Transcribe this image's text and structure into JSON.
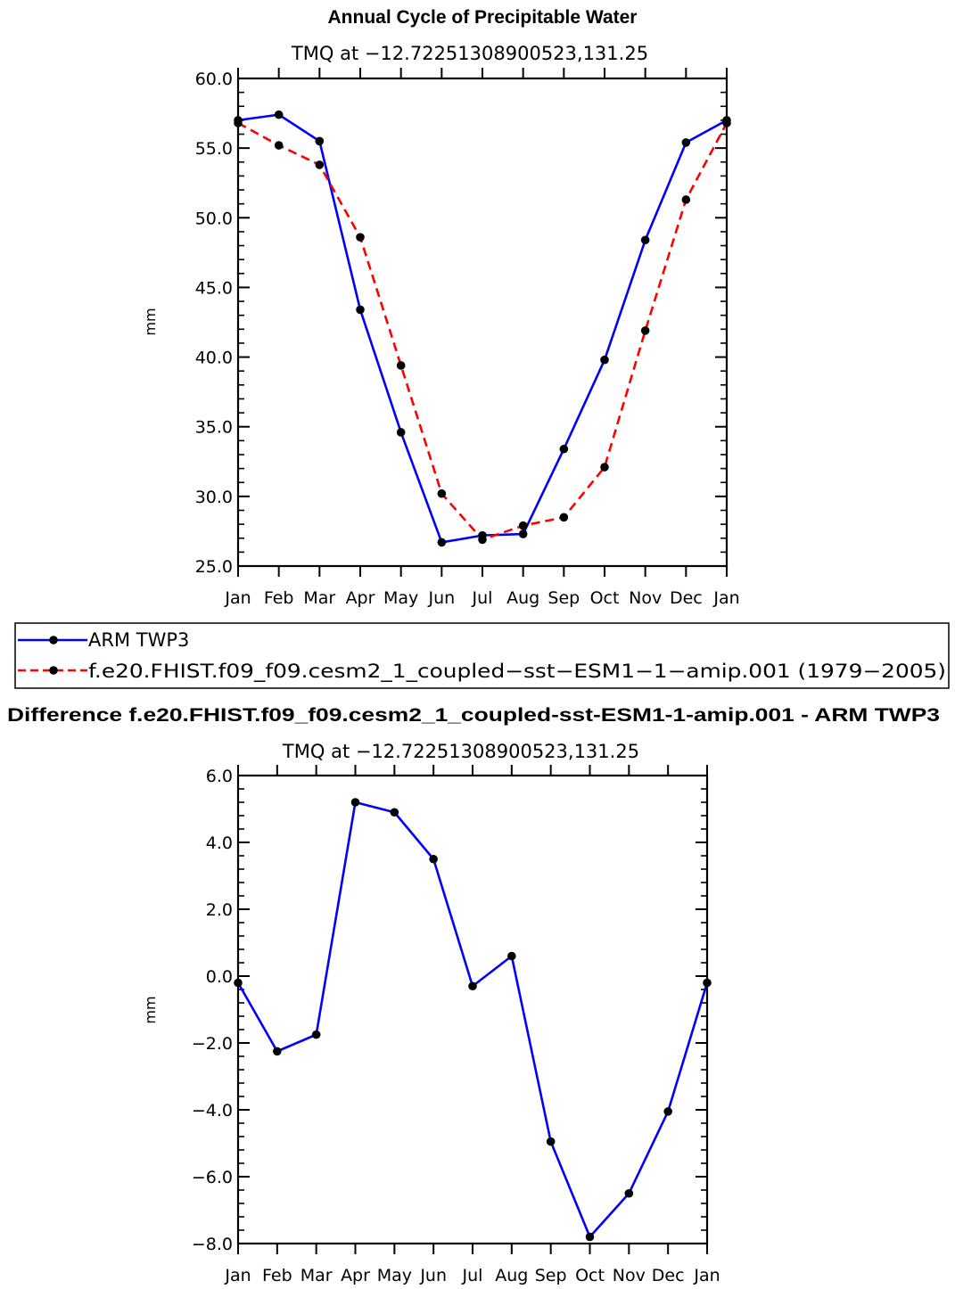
{
  "chart_data": [
    {
      "type": "line",
      "title": "Annual Cycle of Precipitable Water",
      "subtitle": "TMQ at −12.72251308900523,131.25",
      "xlabel": "",
      "ylabel": "mm",
      "categories": [
        "Jan",
        "Feb",
        "Mar",
        "Apr",
        "May",
        "Jun",
        "Jul",
        "Aug",
        "Sep",
        "Oct",
        "Nov",
        "Dec",
        "Jan"
      ],
      "ylim": [
        25.0,
        60.0
      ],
      "yticks": [
        25.0,
        30.0,
        35.0,
        40.0,
        45.0,
        50.0,
        55.0,
        60.0
      ],
      "ytick_labels": [
        "25.0",
        "30.0",
        "35.0",
        "40.0",
        "45.0",
        "50.0",
        "55.0",
        "60.0"
      ],
      "series": [
        {
          "name": "ARM TWP3",
          "color": "#0000ff",
          "style": "solid",
          "marker": "circle",
          "values": [
            57.0,
            57.4,
            55.5,
            43.4,
            34.6,
            26.7,
            27.2,
            27.3,
            33.4,
            39.8,
            48.4,
            55.4,
            57.0
          ]
        },
        {
          "name": "f.e20.FHIST.f09_f09.cesm2_1_coupled−sst−ESM1−1−amip.001 (1979−2005)",
          "color": "#ff0000",
          "style": "dashed",
          "marker": "circle",
          "values": [
            56.8,
            55.2,
            53.8,
            48.6,
            39.4,
            30.2,
            26.9,
            27.9,
            28.5,
            32.1,
            41.9,
            51.3,
            56.8
          ]
        }
      ],
      "legend": "below"
    },
    {
      "type": "line",
      "title": "Difference f.e20.FHIST.f09_f09.cesm2_1_coupled-sst-ESM1-1-amip.001 - ARM TWP3",
      "subtitle": "TMQ at −12.72251308900523,131.25",
      "xlabel": "",
      "ylabel": "mm",
      "categories": [
        "Jan",
        "Feb",
        "Mar",
        "Apr",
        "May",
        "Jun",
        "Jul",
        "Aug",
        "Sep",
        "Oct",
        "Nov",
        "Dec",
        "Jan"
      ],
      "ylim": [
        -8.0,
        6.0
      ],
      "yticks": [
        -8.0,
        -6.0,
        -4.0,
        -2.0,
        0.0,
        2.0,
        4.0,
        6.0
      ],
      "ytick_labels": [
        "−8.0",
        "−6.0",
        "−4.0",
        "−2.0",
        "0.0",
        "2.0",
        "4.0",
        "6.0"
      ],
      "series": [
        {
          "name": "Difference",
          "color": "#0000ff",
          "style": "solid",
          "marker": "circle",
          "values": [
            -0.2,
            -2.25,
            -1.75,
            5.2,
            4.9,
            3.5,
            -0.3,
            0.6,
            -4.95,
            -7.8,
            -6.5,
            -4.05,
            -0.2
          ]
        }
      ]
    }
  ]
}
